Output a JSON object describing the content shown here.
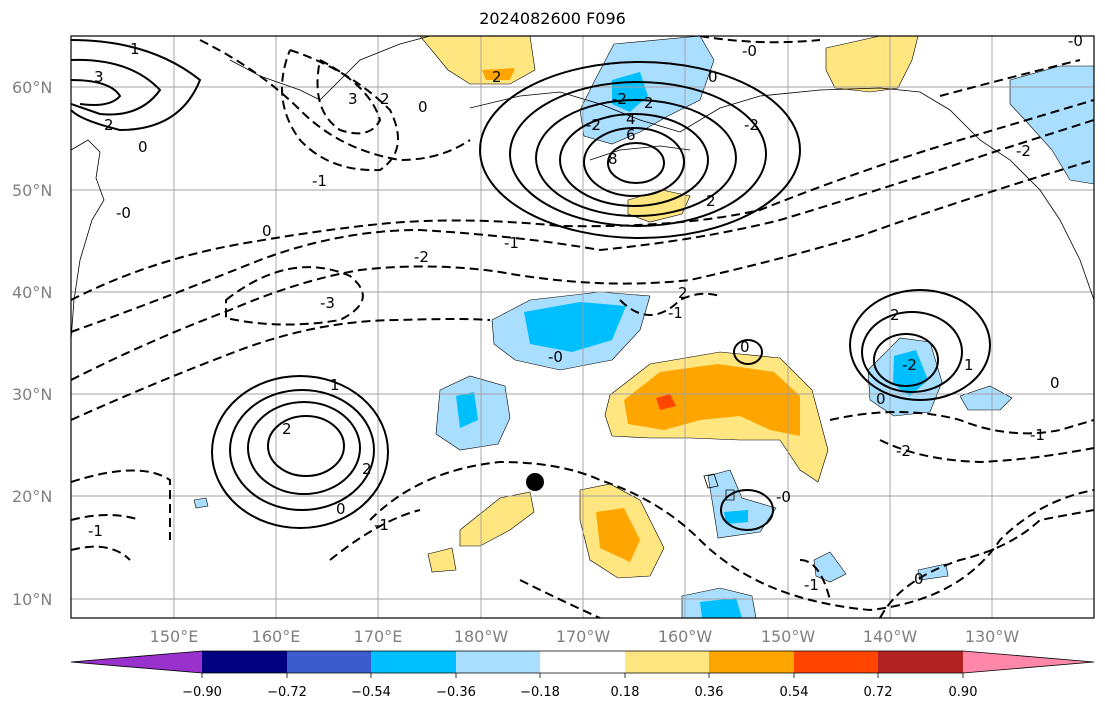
{
  "title": "2024082600 F096",
  "lat_labels": [
    "60°N",
    "50°N",
    "40°N",
    "30°N",
    "20°N",
    "10°N"
  ],
  "lon_labels": [
    "150°E",
    "160°E",
    "170°E",
    "180°W",
    "170°W",
    "160°W",
    "150°W",
    "140°W",
    "130°W"
  ],
  "colorbar": {
    "tick_labels": [
      "−0.90",
      "−0.72",
      "−0.54",
      "−0.36",
      "−0.18",
      "0.18",
      "0.36",
      "0.54",
      "0.72",
      "0.90"
    ],
    "colors": [
      "#9932cc",
      "#000080",
      "#3a5ccc",
      "#00bfff",
      "#aadeff",
      "#ffffff",
      "#ffe680",
      "#ffa500",
      "#ff4500",
      "#b22222",
      "#ff88aa"
    ]
  },
  "contour_labels": {
    "l1": "1",
    "l2": "3",
    "l3": "2",
    "l4": "0",
    "l5": "3",
    "l6": "2",
    "l7": "0",
    "l8": "-1",
    "l9": "-0",
    "l10": "0",
    "l11": "2",
    "l12": "-2",
    "l13": "-2",
    "l14": "0",
    "l15": "2",
    "l16": "4",
    "l17": "6",
    "l18": "8",
    "l19": "-0",
    "l20": "2",
    "l21": "-2",
    "l22": "-1",
    "l23": "-2",
    "l24": "-3",
    "l25": "-0",
    "l26": "2",
    "l27": "-1",
    "l28": "0",
    "l29": "2",
    "l30": "-2",
    "l31": "1",
    "l32": "0",
    "l33": "1",
    "l34": "2",
    "l35": "2",
    "l36": "0",
    "l37": "-1",
    "l38": "-1",
    "l39": "0",
    "l40": "-1",
    "l41": "-0",
    "l42": "-2",
    "l43": "-1",
    "l44": "-2",
    "l45": "0",
    "l46": "-0"
  }
}
